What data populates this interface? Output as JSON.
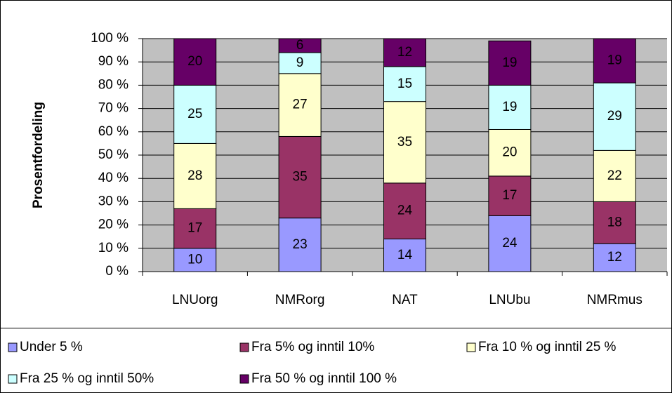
{
  "chart_data": {
    "type": "stacked_bar",
    "y_axis_label": "Prosentfordeling",
    "categories": [
      "LNUorg",
      "NMRorg",
      "NAT",
      "LNUbu",
      "NMRmus"
    ],
    "series": [
      {
        "name": "Under 5 %",
        "color": "#9999ff",
        "values": [
          10,
          23,
          14,
          24,
          12
        ]
      },
      {
        "name": "Fra 5% og inntil 10%",
        "color": "#993366",
        "values": [
          17,
          35,
          24,
          17,
          18
        ]
      },
      {
        "name": "Fra 10 % og inntil 25 %",
        "color": "#ffffcc",
        "values": [
          28,
          27,
          35,
          20,
          22
        ]
      },
      {
        "name": "Fra 25 % og inntil 50%",
        "color": "#ccffff",
        "values": [
          25,
          9,
          15,
          19,
          29
        ]
      },
      {
        "name": "Fra 50 % og inntil 100 %",
        "color": "#660066",
        "values": [
          20,
          6,
          12,
          19,
          19
        ]
      }
    ],
    "ylim": [
      0,
      100
    ],
    "yticks": [
      {
        "value": 0,
        "label": "0 %"
      },
      {
        "value": 10,
        "label": "10 %"
      },
      {
        "value": 20,
        "label": "20 %"
      },
      {
        "value": 30,
        "label": "30 %"
      },
      {
        "value": 40,
        "label": "40 %"
      },
      {
        "value": 50,
        "label": "50 %"
      },
      {
        "value": 60,
        "label": "60 %"
      },
      {
        "value": 70,
        "label": "70 %"
      },
      {
        "value": 80,
        "label": "80 %"
      },
      {
        "value": 90,
        "label": "90 %"
      },
      {
        "value": 100,
        "label": "100 %"
      }
    ],
    "grid": true,
    "legend": "bottom",
    "plot_background": "#c0c0c0"
  }
}
